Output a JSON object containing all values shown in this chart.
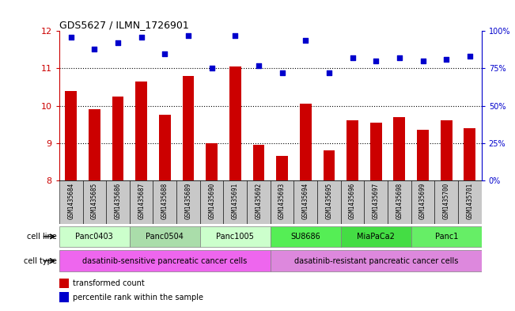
{
  "title": "GDS5627 / ILMN_1726901",
  "samples": [
    "GSM1435684",
    "GSM1435685",
    "GSM1435686",
    "GSM1435687",
    "GSM1435688",
    "GSM1435689",
    "GSM1435690",
    "GSM1435691",
    "GSM1435692",
    "GSM1435693",
    "GSM1435694",
    "GSM1435695",
    "GSM1435696",
    "GSM1435697",
    "GSM1435698",
    "GSM1435699",
    "GSM1435700",
    "GSM1435701"
  ],
  "bar_values": [
    10.4,
    9.9,
    10.25,
    10.65,
    9.75,
    10.8,
    9.0,
    11.05,
    8.95,
    8.65,
    10.05,
    8.8,
    9.6,
    9.55,
    9.7,
    9.35,
    9.6,
    9.4
  ],
  "percentile_values": [
    96,
    88,
    92,
    96,
    85,
    97,
    75,
    97,
    77,
    72,
    94,
    72,
    82,
    80,
    82,
    80,
    81,
    83
  ],
  "bar_color": "#cc0000",
  "percentile_color": "#0000cc",
  "ylim": [
    8,
    12
  ],
  "yticks": [
    8,
    9,
    10,
    11,
    12
  ],
  "right_yticks": [
    0,
    25,
    50,
    75,
    100
  ],
  "cell_lines": [
    {
      "label": "Panc0403",
      "start": 0,
      "end": 3,
      "color": "#ccffcc"
    },
    {
      "label": "Panc0504",
      "start": 3,
      "end": 6,
      "color": "#aaddaa"
    },
    {
      "label": "Panc1005",
      "start": 6,
      "end": 9,
      "color": "#ccffcc"
    },
    {
      "label": "SU8686",
      "start": 9,
      "end": 12,
      "color": "#55ee55"
    },
    {
      "label": "MiaPaCa2",
      "start": 12,
      "end": 15,
      "color": "#44dd44"
    },
    {
      "label": "Panc1",
      "start": 15,
      "end": 18,
      "color": "#66ee66"
    }
  ],
  "cell_types": [
    {
      "label": "dasatinib-sensitive pancreatic cancer cells",
      "start": 0,
      "end": 9,
      "color": "#ee66ee"
    },
    {
      "label": "dasatinib-resistant pancreatic cancer cells",
      "start": 9,
      "end": 18,
      "color": "#dd88dd"
    }
  ],
  "legend_bar_label": "transformed count",
  "legend_pct_label": "percentile rank within the sample",
  "cell_line_label": "cell line",
  "cell_type_label": "cell type",
  "bar_width": 0.5,
  "axis_color_left": "#cc0000",
  "axis_color_right": "#0000cc",
  "tick_bg_color": "#c8c8c8",
  "bg_color": "#ffffff"
}
